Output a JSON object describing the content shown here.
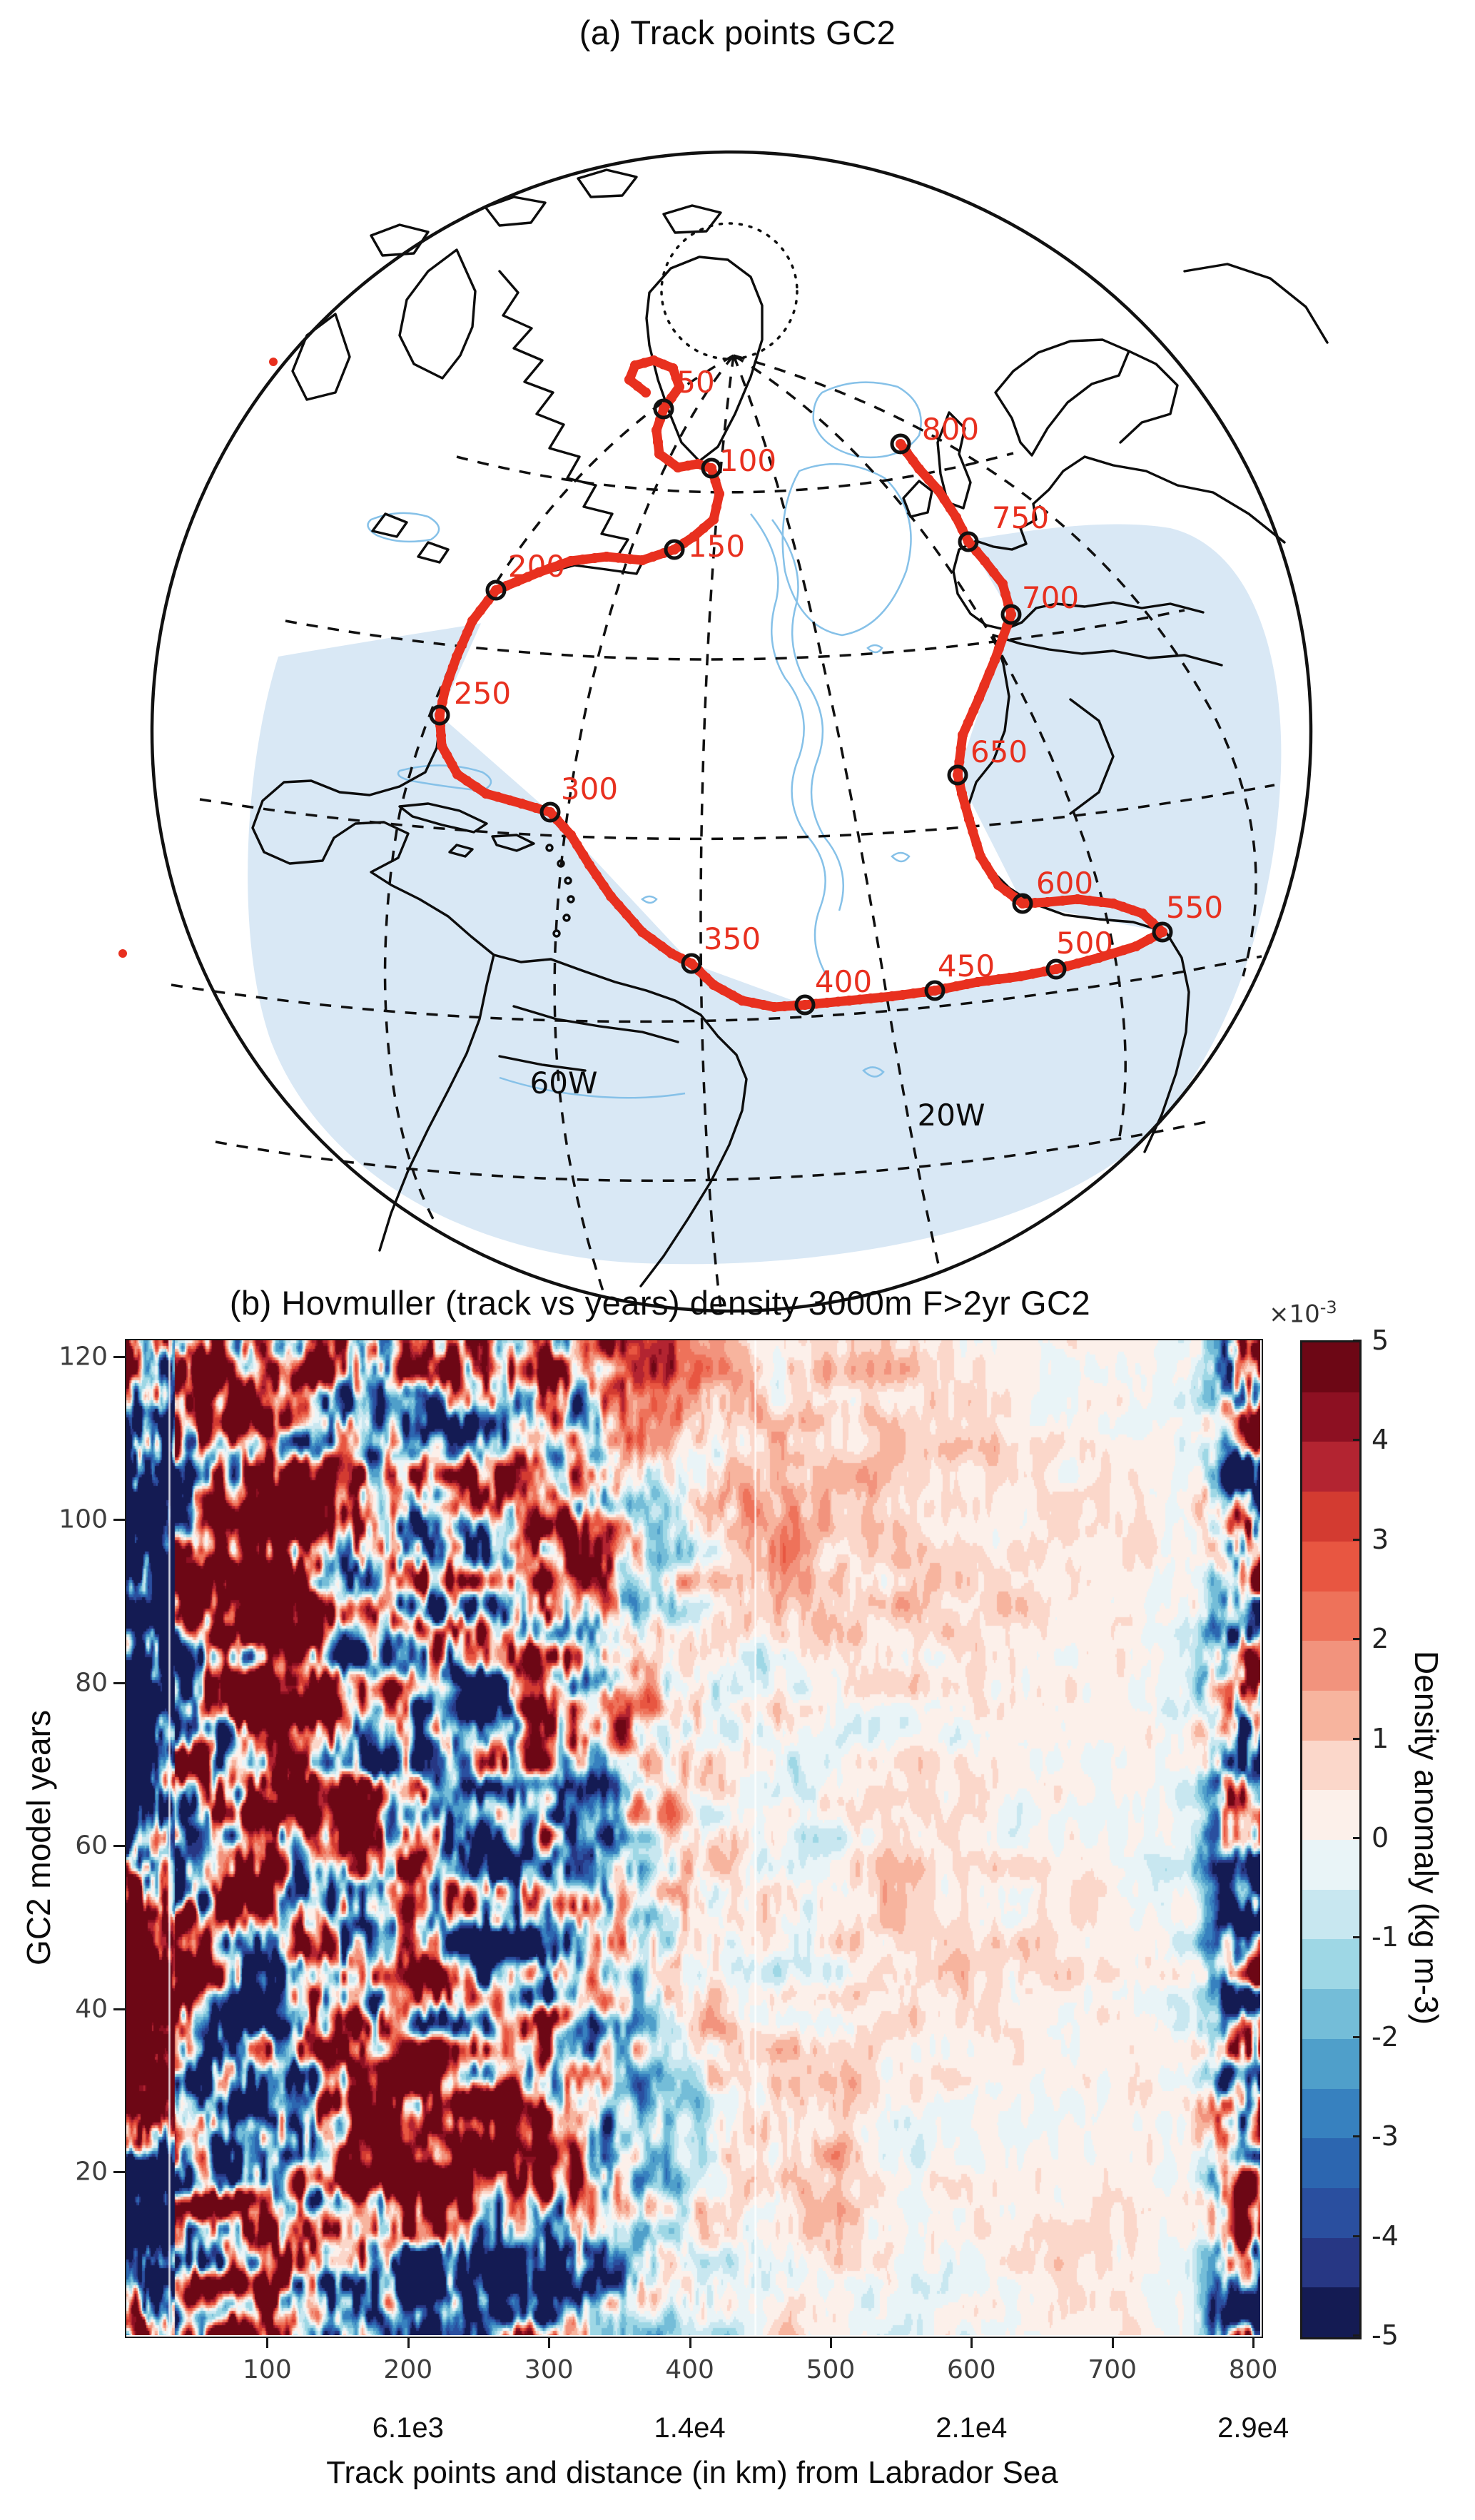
{
  "chart_data": [
    {
      "type": "map",
      "panel": "a",
      "title": "(a) Track points GC2",
      "projection": "orthographic globe, North Atlantic",
      "track_name": "GC2 track",
      "track_color": "#e8301f",
      "shade_color": "#d9e8f5",
      "contour_color": "#86c1e8",
      "point_label_interval": 50,
      "markers": [
        {
          "label": "50",
          "x": 930,
          "y": 493,
          "lx": 975,
          "ly": 470
        },
        {
          "label": "100",
          "x": 997,
          "y": 576,
          "lx": 1048,
          "ly": 580
        },
        {
          "label": "150",
          "x": 945,
          "y": 690,
          "lx": 1004,
          "ly": 700
        },
        {
          "label": "200",
          "x": 695,
          "y": 747,
          "lx": 752,
          "ly": 728
        },
        {
          "label": "250",
          "x": 616,
          "y": 922,
          "lx": 676,
          "ly": 906
        },
        {
          "label": "300",
          "x": 771,
          "y": 1058,
          "lx": 826,
          "ly": 1040
        },
        {
          "label": "350",
          "x": 969,
          "y": 1270,
          "lx": 1026,
          "ly": 1250
        },
        {
          "label": "400",
          "x": 1128,
          "y": 1328,
          "lx": 1182,
          "ly": 1310
        },
        {
          "label": "450",
          "x": 1310,
          "y": 1308,
          "lx": 1354,
          "ly": 1288
        },
        {
          "label": "500",
          "x": 1480,
          "y": 1278,
          "lx": 1520,
          "ly": 1256
        },
        {
          "label": "550",
          "x": 1629,
          "y": 1226,
          "lx": 1674,
          "ly": 1206
        },
        {
          "label": "600",
          "x": 1433,
          "y": 1186,
          "lx": 1492,
          "ly": 1172
        },
        {
          "label": "650",
          "x": 1342,
          "y": 1006,
          "lx": 1400,
          "ly": 988
        },
        {
          "label": "700",
          "x": 1417,
          "y": 781,
          "lx": 1472,
          "ly": 772
        },
        {
          "label": "750",
          "x": 1357,
          "y": 679,
          "lx": 1430,
          "ly": 660
        },
        {
          "label": "800",
          "x": 1262,
          "y": 542,
          "lx": 1332,
          "ly": 536
        }
      ],
      "track_path": [
        [
          905,
          470
        ],
        [
          882,
          452
        ],
        [
          890,
          432
        ],
        [
          916,
          425
        ],
        [
          943,
          436
        ],
        [
          952,
          462
        ],
        [
          930,
          493
        ],
        [
          920,
          523
        ],
        [
          924,
          556
        ],
        [
          950,
          575
        ],
        [
          978,
          570
        ],
        [
          997,
          576
        ],
        [
          1008,
          612
        ],
        [
          1000,
          648
        ],
        [
          972,
          672
        ],
        [
          945,
          690
        ],
        [
          900,
          705
        ],
        [
          850,
          700
        ],
        [
          800,
          706
        ],
        [
          755,
          722
        ],
        [
          695,
          747
        ],
        [
          662,
          790
        ],
        [
          640,
          840
        ],
        [
          624,
          885
        ],
        [
          616,
          922
        ],
        [
          619,
          965
        ],
        [
          641,
          1005
        ],
        [
          681,
          1032
        ],
        [
          731,
          1046
        ],
        [
          771,
          1058
        ],
        [
          800,
          1090
        ],
        [
          826,
          1132
        ],
        [
          856,
          1176
        ],
        [
          900,
          1226
        ],
        [
          941,
          1256
        ],
        [
          969,
          1270
        ],
        [
          1000,
          1300
        ],
        [
          1040,
          1322
        ],
        [
          1085,
          1331
        ],
        [
          1128,
          1328
        ],
        [
          1190,
          1322
        ],
        [
          1250,
          1316
        ],
        [
          1310,
          1308
        ],
        [
          1370,
          1296
        ],
        [
          1430,
          1288
        ],
        [
          1480,
          1278
        ],
        [
          1540,
          1262
        ],
        [
          1592,
          1246
        ],
        [
          1629,
          1226
        ],
        [
          1601,
          1200
        ],
        [
          1560,
          1186
        ],
        [
          1510,
          1180
        ],
        [
          1468,
          1184
        ],
        [
          1433,
          1186
        ],
        [
          1399,
          1160
        ],
        [
          1374,
          1120
        ],
        [
          1358,
          1068
        ],
        [
          1348,
          1032
        ],
        [
          1342,
          1006
        ],
        [
          1349,
          950
        ],
        [
          1372,
          898
        ],
        [
          1394,
          845
        ],
        [
          1417,
          781
        ],
        [
          1405,
          738
        ],
        [
          1380,
          706
        ],
        [
          1357,
          679
        ],
        [
          1340,
          645
        ],
        [
          1315,
          607
        ],
        [
          1288,
          577
        ],
        [
          1262,
          542
        ]
      ],
      "extra_points": [
        [
          383,
          427
        ],
        [
          172,
          1256
        ]
      ],
      "lon_labels": [
        {
          "text": "60W",
          "x": 790,
          "y": 1452
        },
        {
          "text": "20W",
          "x": 1333,
          "y": 1497
        }
      ]
    },
    {
      "type": "heatmap",
      "panel": "b",
      "title": "(b) Hovmuller (track vs years) density 3000m F>2yr GC2",
      "xlabel": "Track points and distance (in km) from Labrador Sea",
      "ylabel": "GC2 model years",
      "x_range": [
        0,
        805
      ],
      "y_range": [
        0,
        122
      ],
      "x_ticks": [
        100,
        200,
        300,
        400,
        500,
        600,
        700,
        800
      ],
      "x_secondary_ticks": [
        {
          "x": 200,
          "label": "6.1e3"
        },
        {
          "x": 400,
          "label": "1.4e4"
        },
        {
          "x": 600,
          "label": "2.1e4"
        },
        {
          "x": 800,
          "label": "2.9e4"
        }
      ],
      "y_ticks": [
        20,
        40,
        60,
        80,
        100,
        120
      ],
      "grid": false,
      "colorbar": {
        "label": "Density anomaly (kg m-3)",
        "scale_prefix": "×10",
        "scale_exp": "-3",
        "ticks": [
          5,
          4,
          3,
          2,
          1,
          0,
          -1,
          -2,
          -3,
          -4,
          -5
        ],
        "level_min": -5,
        "level_max": 5,
        "level_step": 0.5,
        "colors": [
          "#141b53",
          "#273784",
          "#2a4f9f",
          "#2c66b0",
          "#3781bf",
          "#4f9fca",
          "#74bdd8",
          "#9ed7e5",
          "#c8e7f0",
          "#e9f4f7",
          "#fcf0ea",
          "#fbd7ca",
          "#f7b49e",
          "#f2937d",
          "#ee725a",
          "#e85641",
          "#d33b31",
          "#b32431",
          "#8d1022",
          "#6d0715"
        ]
      },
      "pattern": {
        "seed": 7,
        "units": "1e-3 kg m-3",
        "amplitude_profile": [
          [
            0,
            13
          ],
          [
            34,
            12
          ],
          [
            90,
            10.5
          ],
          [
            200,
            9.5
          ],
          [
            300,
            9
          ],
          [
            340,
            6
          ],
          [
            380,
            2.6
          ],
          [
            430,
            1.5
          ],
          [
            520,
            1.1
          ],
          [
            600,
            0.8
          ],
          [
            700,
            0.65
          ],
          [
            755,
            0.9
          ],
          [
            770,
            4
          ],
          [
            788,
            11
          ],
          [
            805,
            13
          ]
        ],
        "bias_profile": [
          [
            0,
            0
          ],
          [
            350,
            0.25
          ],
          [
            450,
            0.4
          ],
          [
            600,
            0.3
          ],
          [
            720,
            0.15
          ],
          [
            805,
            0
          ]
        ],
        "white_lines_x": [
          30,
          446
        ],
        "description": "Saturated +/-5e-3 multi-year red/blue anomalies for track points 1-340 (Labrador Sea to western boundary), weak pale horizontally-banded anomalies ~+/-1e-3 for points 400-760, strong saturated anomalies again near the eastern end (points ~770-800)."
      }
    }
  ]
}
